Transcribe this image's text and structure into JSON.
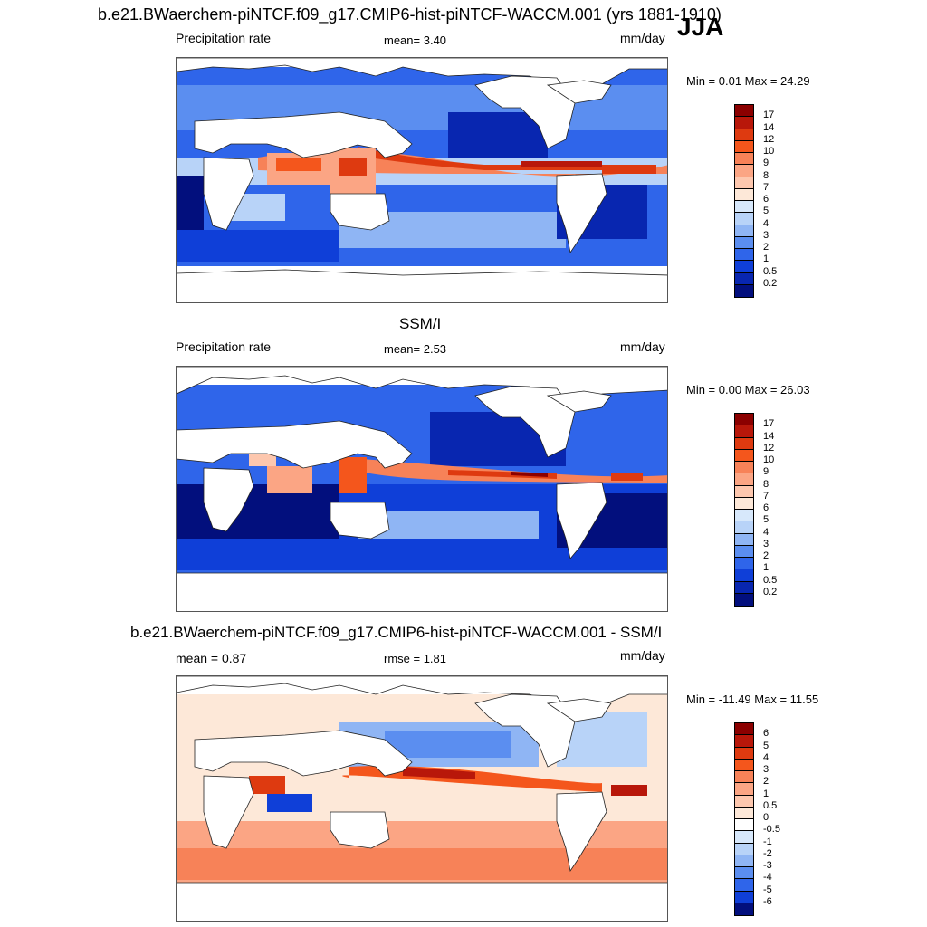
{
  "title": "b.e21.BWaerchem-piNTCF.f09_g17.CMIP6-hist-piNTCF-WACCM.001 (yrs 1881-1910)",
  "season": "JJA",
  "panels": [
    {
      "heading": "",
      "left_label": "Precipitation rate",
      "center_label": "mean=   3.40",
      "units": "mm/day",
      "minmax": "Min =   0.01 Max =  24.29",
      "ticks": [
        "17",
        "14",
        "12",
        "10",
        "9",
        "8",
        "7",
        "6",
        "5",
        "4",
        "3",
        "2",
        "1",
        "0.5",
        "0.2"
      ],
      "colors": [
        "#8b0000",
        "#b8170a",
        "#de3a10",
        "#f4561c",
        "#f78258",
        "#fba584",
        "#fdc7ae",
        "#fde8d8",
        "#d7e8fb",
        "#b8d3f8",
        "#8fb5f4",
        "#5b8ef0",
        "#2f65ea",
        "#0f3fd8",
        "#0826b0",
        "#020f7d"
      ]
    },
    {
      "heading": "SSM/I",
      "left_label": "Precipitation rate",
      "center_label": "mean=   2.53",
      "units": "mm/day",
      "minmax": "Min =   0.00 Max =  26.03",
      "ticks": [
        "17",
        "14",
        "12",
        "10",
        "9",
        "8",
        "7",
        "6",
        "5",
        "4",
        "3",
        "2",
        "1",
        "0.5",
        "0.2"
      ],
      "colors": [
        "#8b0000",
        "#b8170a",
        "#de3a10",
        "#f4561c",
        "#f78258",
        "#fba584",
        "#fdc7ae",
        "#fde8d8",
        "#d7e8fb",
        "#b8d3f8",
        "#8fb5f4",
        "#5b8ef0",
        "#2f65ea",
        "#0f3fd8",
        "#0826b0",
        "#020f7d"
      ]
    },
    {
      "heading": "b.e21.BWaerchem-piNTCF.f09_g17.CMIP6-hist-piNTCF-WACCM.001 - SSM/I",
      "left_label": "mean =   0.87",
      "center_label": "rmse =   1.81",
      "units": "mm/day",
      "minmax": "Min = -11.49 Max =  11.55",
      "ticks": [
        "6",
        "5",
        "4",
        "3",
        "2",
        "1",
        "0.5",
        "0",
        "-0.5",
        "-1",
        "-2",
        "-3",
        "-4",
        "-5",
        "-6"
      ],
      "colors": [
        "#8b0000",
        "#b8170a",
        "#de3a10",
        "#f4561c",
        "#f78258",
        "#fba584",
        "#fdc7ae",
        "#fde8d8",
        "#ffffff",
        "#d7e8fb",
        "#b8d3f8",
        "#8fb5f4",
        "#5b8ef0",
        "#2f65ea",
        "#0f3fd8",
        "#020f7d"
      ]
    }
  ]
}
